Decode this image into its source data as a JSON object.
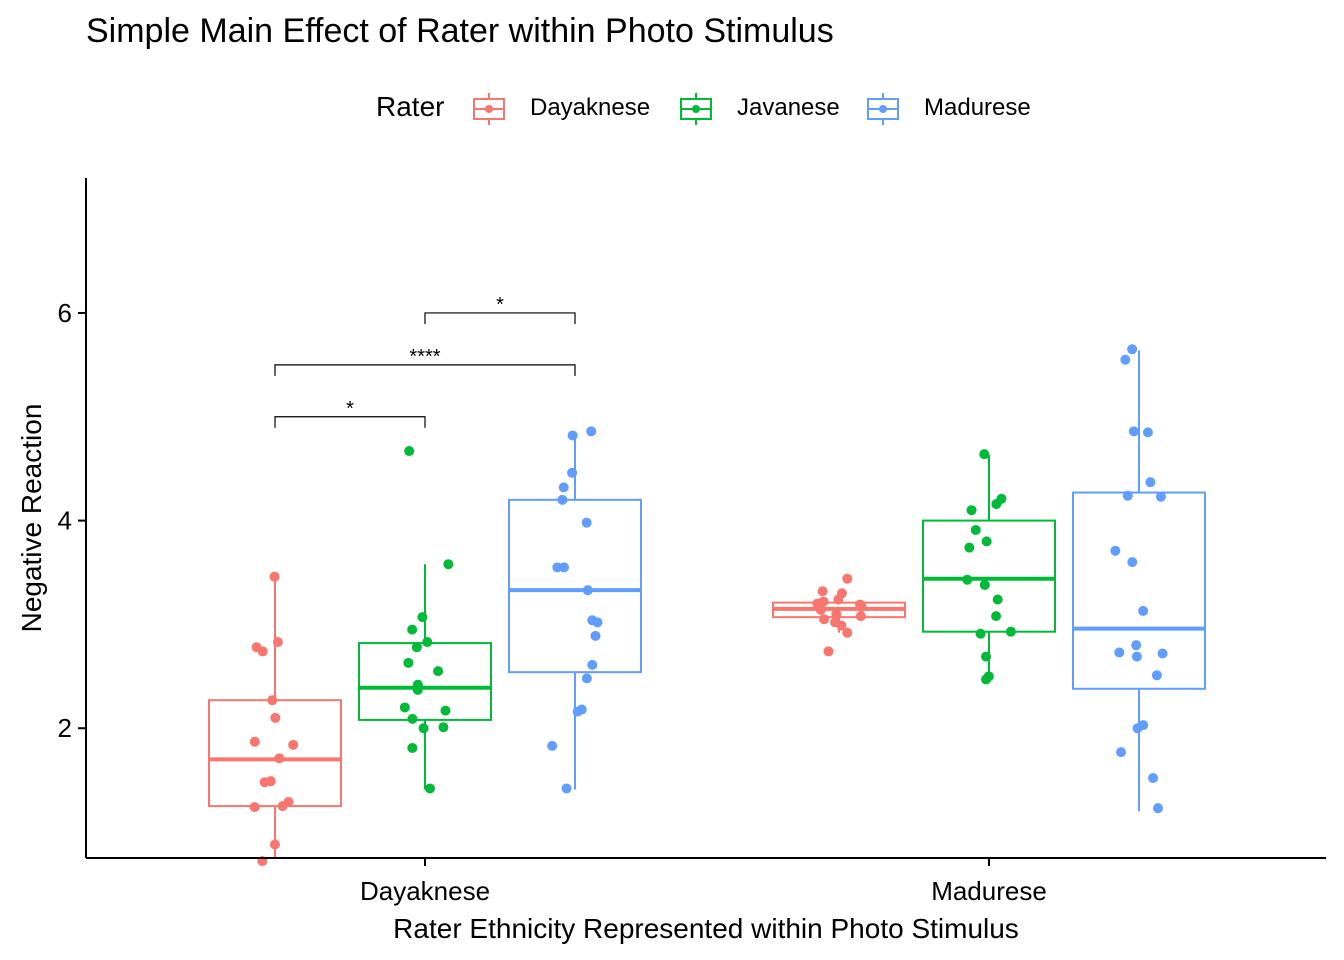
{
  "chart_data": {
    "type": "boxplot",
    "title": "Simple Main Effect of Rater within Photo Stimulus",
    "xlabel": "Rater Ethnicity Represented within Photo Stimulus",
    "ylabel": "Negative Reaction",
    "ylim": [
      0.75,
      7.3
    ],
    "yticks": [
      2,
      4,
      6
    ],
    "ytick_labels": [
      "2",
      "4",
      "6"
    ],
    "categories": [
      "Dayaknese",
      "Madurese"
    ],
    "legend": {
      "title": "Rater",
      "position": "top",
      "entries": [
        "Dayaknese",
        "Javanese",
        "Madurese"
      ]
    },
    "series": [
      {
        "name": "Dayaknese",
        "color": "#F8766D",
        "boxes": [
          {
            "category": "Dayaknese",
            "whisker_low": 0.75,
            "q1": 1.25,
            "median": 1.7,
            "q3": 2.27,
            "whisker_high": 3.46,
            "points": [
              3.46,
              2.83,
              2.78,
              2.74,
              2.27,
              2.1,
              1.87,
              1.84,
              1.71,
              1.49,
              1.48,
              1.29,
              1.25,
              1.24,
              0.88,
              0.72
            ]
          },
          {
            "category": "Madurese",
            "whisker_low": 2.92,
            "q1": 3.07,
            "median": 3.15,
            "q3": 3.21,
            "whisker_high": 3.3,
            "points": [
              3.44,
              3.32,
              3.3,
              3.24,
              3.22,
              3.2,
              3.19,
              3.17,
              3.14,
              3.1,
              3.08,
              3.05,
              3.02,
              2.99,
              2.92,
              2.74
            ]
          }
        ]
      },
      {
        "name": "Javanese",
        "color": "#00BA38",
        "boxes": [
          {
            "category": "Dayaknese",
            "whisker_low": 1.41,
            "q1": 2.08,
            "median": 2.39,
            "q3": 2.82,
            "whisker_high": 3.58,
            "points": [
              4.67,
              3.58,
              3.07,
              2.95,
              2.83,
              2.78,
              2.63,
              2.55,
              2.42,
              2.37,
              2.2,
              2.17,
              2.09,
              2.01,
              2.0,
              1.81,
              1.42
            ]
          },
          {
            "category": "Madurese",
            "whisker_low": 2.46,
            "q1": 2.93,
            "median": 3.44,
            "q3": 4.0,
            "whisker_high": 4.63,
            "points": [
              4.64,
              4.21,
              4.16,
              4.1,
              3.91,
              3.8,
              3.74,
              3.43,
              3.38,
              3.24,
              3.08,
              2.93,
              2.91,
              2.69,
              2.5,
              2.47
            ]
          }
        ]
      },
      {
        "name": "Madurese",
        "color": "#619CFF",
        "boxes": [
          {
            "category": "Dayaknese",
            "whisker_low": 1.41,
            "q1": 2.54,
            "median": 3.33,
            "q3": 4.2,
            "whisker_high": 4.85,
            "points": [
              4.86,
              4.82,
              4.46,
              4.32,
              4.2,
              3.98,
              3.55,
              3.55,
              3.33,
              3.04,
              3.02,
              2.89,
              2.61,
              2.48,
              2.18,
              2.16,
              1.83,
              1.42
            ]
          },
          {
            "category": "Madurese",
            "whisker_low": 1.2,
            "q1": 2.38,
            "median": 2.96,
            "q3": 4.27,
            "whisker_high": 5.64,
            "points": [
              5.65,
              5.55,
              4.86,
              4.85,
              4.37,
              4.24,
              4.23,
              3.71,
              3.6,
              3.13,
              2.8,
              2.73,
              2.72,
              2.69,
              2.51,
              2.03,
              2.0,
              1.77,
              1.52,
              1.23
            ]
          }
        ]
      }
    ],
    "significance": [
      {
        "category": "Dayaknese",
        "from": "Dayaknese",
        "to": "Javanese",
        "y": 5.0,
        "label": "*"
      },
      {
        "category": "Dayaknese",
        "from": "Dayaknese",
        "to": "Madurese",
        "y": 5.5,
        "label": "****"
      },
      {
        "category": "Dayaknese",
        "from": "Javanese",
        "to": "Madurese",
        "y": 6.0,
        "label": "*"
      }
    ]
  }
}
